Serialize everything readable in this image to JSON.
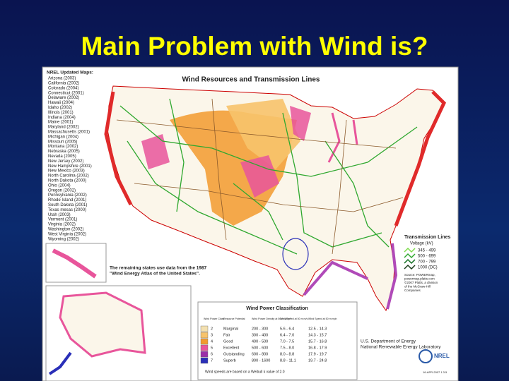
{
  "title": "Main Problem with Wind is?",
  "map": {
    "title": "Wind Resources and Transmission Lines",
    "updated_header": "NREL Updated Maps:",
    "updated_states": [
      "Arizona (2003)",
      "California (2002)",
      "Colorado (2004)",
      "Connecticut (2001)",
      "Delaware (2002)",
      "Hawaii (2004)",
      "Idaho (2002)",
      "Illinois (2001)",
      "Indiana (2004)",
      "Maine (2001)",
      "Maryland (2002)",
      "Massachusetts (2001)",
      "Michigan (2004)",
      "Missouri (2005)",
      "Montana (2002)",
      "Nebraska (2005)",
      "Nevada (2005)",
      "New Jersey (2002)",
      "New Hampshire (2001)",
      "New Mexico (2003)",
      "North Carolina (2002)",
      "North Dakota (2000)",
      "Ohio (2004)",
      "Oregon (2002)",
      "Pennsylvania (2002)",
      "Rhode Island (2001)",
      "South Dakota (2001)",
      "Texas mesas (2000)",
      "Utah (2003)",
      "Vermont (2001)",
      "Virginia (2002)",
      "Washington (2002)",
      "West Virginia (2002)",
      "Wyoming (2002)"
    ],
    "note": [
      "The remaining states use data from the 1987",
      "\"Wind Energy Atlas of the United States\"."
    ],
    "transmission": {
      "title": "Transmission Lines",
      "subtitle": "Voltage (kV)",
      "entries": [
        {
          "label": "345 - 499",
          "color": "#7ddc4a"
        },
        {
          "label": "500 - 699",
          "color": "#2fa82f"
        },
        {
          "label": "700 - 799",
          "color": "#0f6e1f"
        },
        {
          "label": "1000 (DC)",
          "color": "#1a3d1a"
        }
      ],
      "source": [
        "Source: POWERmap,",
        "powermap.platts.com",
        "©2007 Platts, a division",
        "of the McGraw-Hill",
        "Companies"
      ]
    },
    "classification": {
      "title": "Wind Power Classification",
      "headers": [
        "Wind Power Class",
        "Resource Potential",
        "Wind Power Density at 50 m W/m²",
        "Wind Speed at 50 m m/s",
        "Wind Speed at 50 m mph"
      ],
      "rows": [
        {
          "class": "2",
          "potential": "Marginal",
          "density": "200 - 300",
          "speed_ms": "5.6 - 6.4",
          "speed_mph": "12.5 - 14.3",
          "color": "#f3e0b0"
        },
        {
          "class": "3",
          "potential": "Fair",
          "density": "300 - 400",
          "speed_ms": "6.4 - 7.0",
          "speed_mph": "14.3 - 15.7",
          "color": "#f7c36b"
        },
        {
          "class": "4",
          "potential": "Good",
          "density": "400 - 500",
          "speed_ms": "7.0 - 7.5",
          "speed_mph": "15.7 - 16.8",
          "color": "#f29a2e"
        },
        {
          "class": "5",
          "potential": "Excellent",
          "density": "500 - 600",
          "speed_ms": "7.5 - 8.0",
          "speed_mph": "16.8 - 17.9",
          "color": "#e8559b"
        },
        {
          "class": "6",
          "potential": "Outstanding",
          "density": "600 - 800",
          "speed_ms": "8.0 - 8.8",
          "speed_mph": "17.9 - 19.7",
          "color": "#9b2fa8"
        },
        {
          "class": "7",
          "potential": "Superb",
          "density": "800 - 1600",
          "speed_ms": "8.8 - 11.1",
          "speed_mph": "19.7 - 24.8",
          "color": "#2a2fb8"
        }
      ],
      "footnote": "Wind speeds are based on a Weibull k value of 2.0"
    },
    "agency": [
      "U.S. Department of Energy",
      "National Renewable Energy Laboratory"
    ],
    "logo": "NREL",
    "date": "16-APR-2007 1.3.5"
  }
}
